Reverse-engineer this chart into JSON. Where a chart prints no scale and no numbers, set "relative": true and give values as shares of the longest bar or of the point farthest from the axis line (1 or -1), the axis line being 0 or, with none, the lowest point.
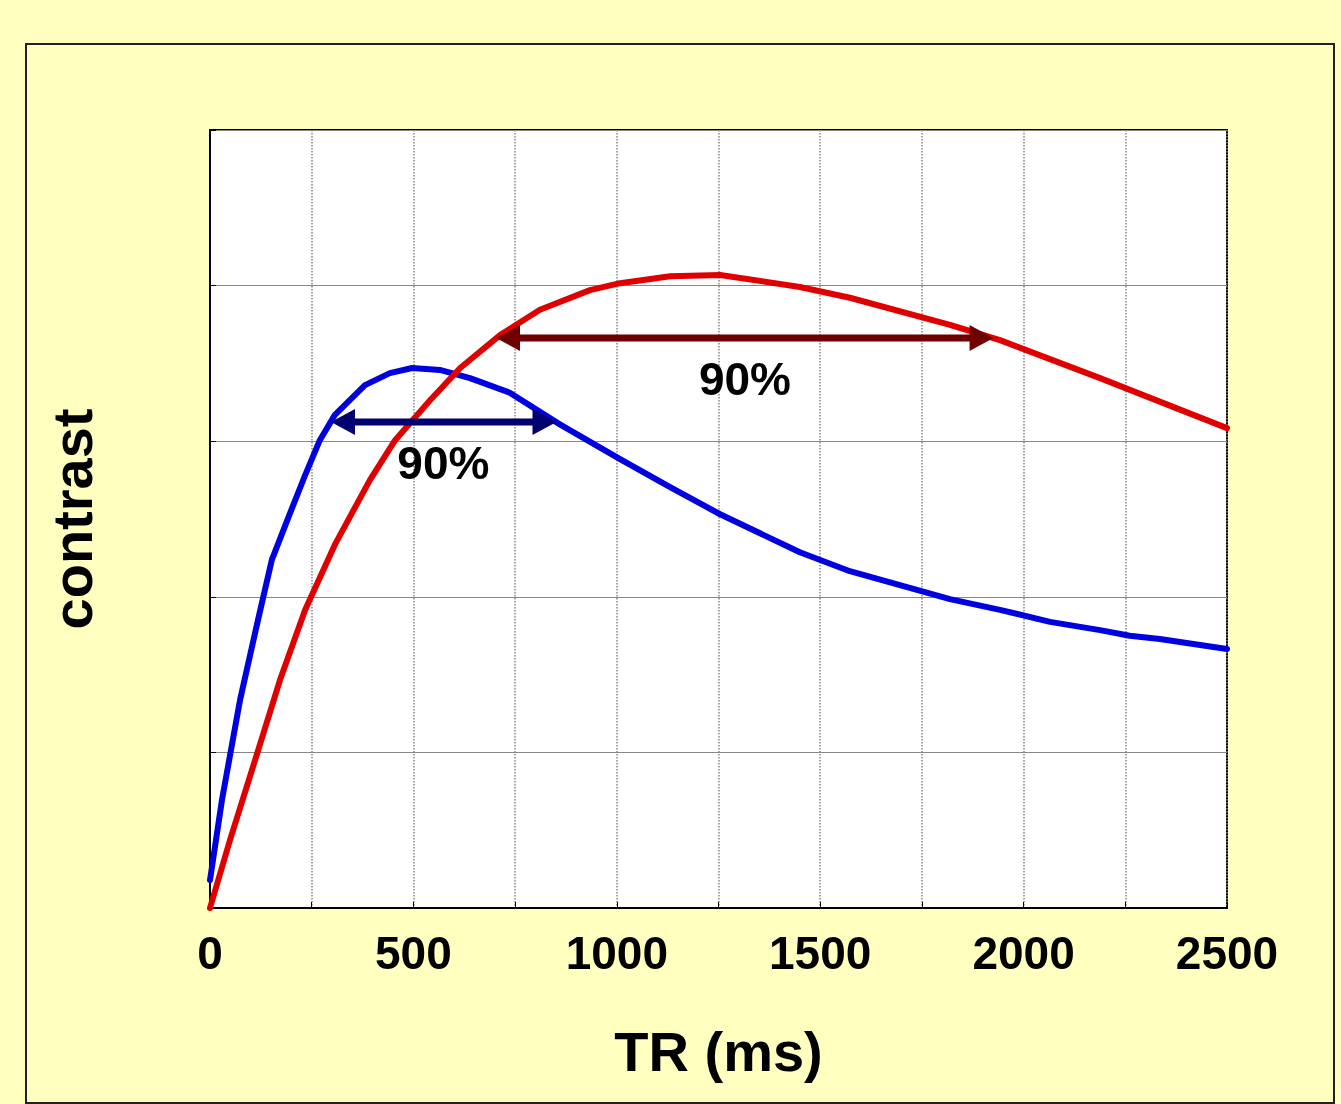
{
  "chart_data": {
    "type": "line",
    "xlabel": "TR (ms)",
    "ylabel": "contrast",
    "relative": true,
    "xlim": [
      0,
      2500
    ],
    "xticks": [
      0,
      {
        "value": 250,
        "label": null
      },
      500,
      {
        "value": 750,
        "label": null
      },
      1000,
      {
        "value": 1250,
        "label": null
      },
      1500,
      {
        "value": 1750,
        "label": null
      },
      2000,
      {
        "value": 2250,
        "label": null
      },
      2500
    ],
    "grid": true,
    "marker": "none",
    "line_style": "solid",
    "series": [
      {
        "color": "#0000e0",
        "x": [
          0,
          29.5,
          74,
          118,
          152,
          192,
          234,
          270,
          307,
          381,
          442,
          497,
          565,
          639,
          737,
          860,
          1008,
          1131,
          1254,
          1450,
          1573,
          1696,
          1819,
          1942,
          2065,
          2188,
          2261,
          2335,
          2500
        ],
        "values": [
          0.044,
          0.171,
          0.329,
          0.455,
          0.55,
          0.616,
          0.684,
          0.739,
          0.779,
          0.826,
          0.845,
          0.853,
          0.85,
          0.837,
          0.814,
          0.764,
          0.709,
          0.665,
          0.622,
          0.562,
          0.532,
          0.51,
          0.488,
          0.471,
          0.452,
          0.439,
          0.43,
          0.425,
          0.409
        ]
      },
      {
        "color": "#e00000",
        "x": [
          0,
          49,
          111,
          172,
          234,
          307,
          393,
          455,
          541,
          615,
          713,
          811,
          934,
          1008,
          1131,
          1254,
          1450,
          1573,
          1819,
          1942,
          2188,
          2500
        ],
        "values": [
          0,
          0.107,
          0.234,
          0.36,
          0.471,
          0.574,
          0.676,
          0.739,
          0.802,
          0.853,
          0.905,
          0.945,
          0.976,
          0.987,
          0.998,
          1,
          0.981,
          0.964,
          0.921,
          0.897,
          0.837,
          0.758
        ]
      }
    ],
    "annotations": [
      "90%",
      "90%"
    ]
  }
}
